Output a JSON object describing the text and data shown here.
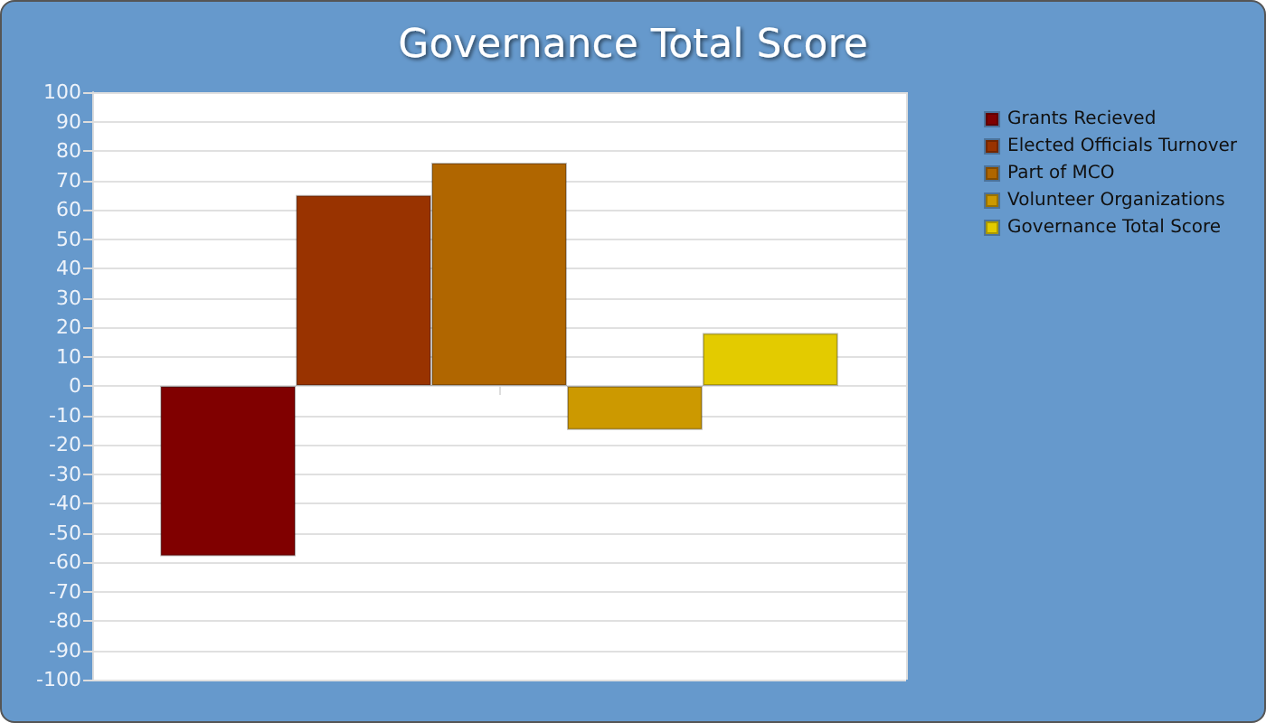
{
  "chart_data": {
    "type": "bar",
    "title": "Governance Total Score",
    "categories": [
      null
    ],
    "series": [
      {
        "name": "Grants Recieved",
        "color": "#800000",
        "values": [
          -58
        ]
      },
      {
        "name": "Elected Officials Turnover",
        "color": "#993300",
        "values": [
          65
        ]
      },
      {
        "name": "Part of MCO",
        "color": "#b06600",
        "values": [
          76
        ]
      },
      {
        "name": "Volunteer Organizations",
        "color": "#cc9900",
        "values": [
          -15
        ]
      },
      {
        "name": "Governance Total Score",
        "color": "#e3cb00",
        "values": [
          18
        ]
      }
    ],
    "ylim": [
      -100,
      100
    ],
    "yticks": [
      -100,
      -90,
      -80,
      -70,
      -60,
      -50,
      -40,
      -30,
      -20,
      -10,
      0,
      10,
      20,
      30,
      40,
      50,
      60,
      70,
      80,
      90,
      100
    ],
    "grid": true,
    "legend": "right"
  }
}
